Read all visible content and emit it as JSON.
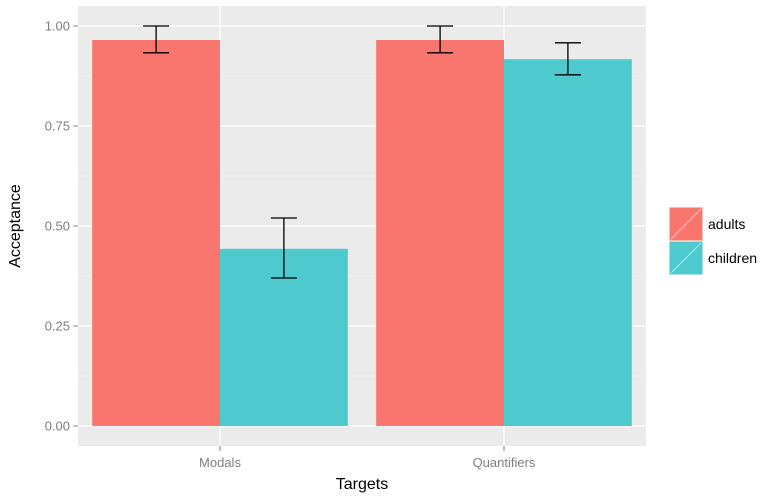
{
  "chart_data": {
    "type": "bar",
    "xlabel": "Targets",
    "ylabel": "Acceptance",
    "categories": [
      "Modals",
      "Quantifiers"
    ],
    "ylim": [
      -0.05,
      1.05
    ],
    "yticks": [
      "0.00",
      "0.25",
      "0.50",
      "0.75",
      "1.00"
    ],
    "grid": true,
    "legend_position": "right",
    "series": [
      {
        "name": "adults",
        "color": "#F8766D",
        "values": [
          0.965,
          0.965
        ],
        "error_low": [
          0.933,
          0.933
        ],
        "error_high": [
          1.0,
          1.0
        ]
      },
      {
        "name": "children",
        "color": "#4ECACF",
        "values": [
          0.443,
          0.917
        ],
        "error_low": [
          0.37,
          0.878
        ],
        "error_high": [
          0.52,
          0.958
        ]
      }
    ]
  }
}
